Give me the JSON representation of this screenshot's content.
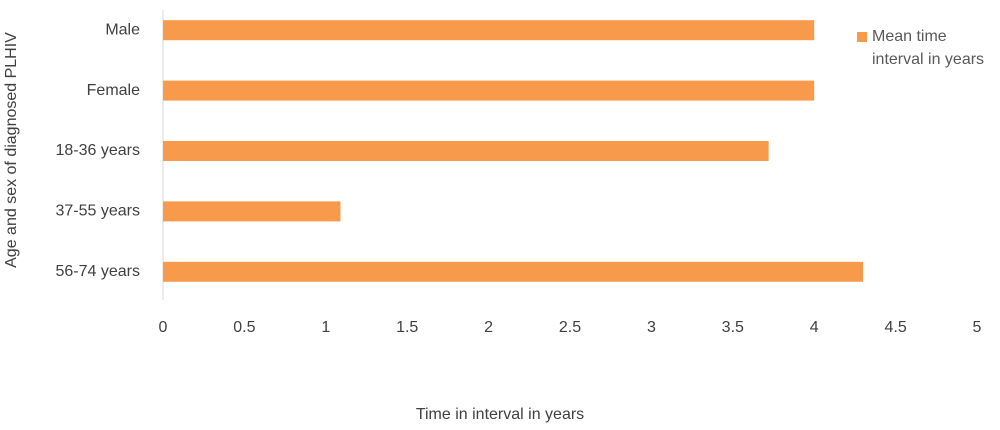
{
  "chart_data": {
    "type": "bar",
    "orientation": "horizontal",
    "categories": [
      "Male",
      "Female",
      "18-36 years",
      "37-55 years",
      "56-74 years"
    ],
    "series": [
      {
        "name": "Mean time interval in years",
        "color": "#f79a4c",
        "values": [
          4,
          4,
          3.72,
          1.09,
          4.3
        ]
      }
    ],
    "xlim": [
      0,
      5
    ],
    "xticks": [
      0,
      0.5,
      1,
      1.5,
      2,
      2.5,
      3,
      3.5,
      4,
      4.5,
      5
    ],
    "xlabel": "Time in interval in years",
    "ylabel": "Age and sex of diagnosed PLHIV",
    "legend": "right"
  }
}
